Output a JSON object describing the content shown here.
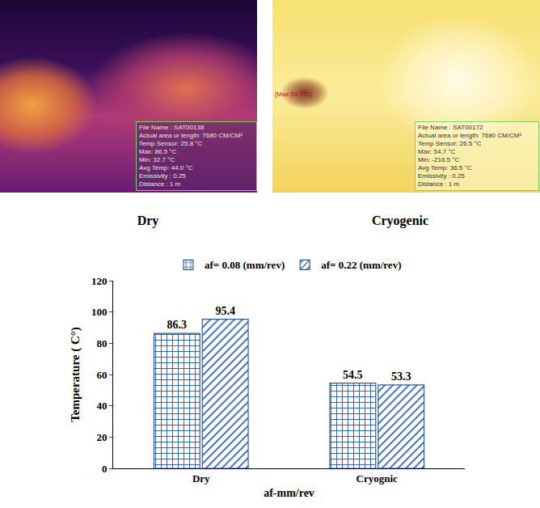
{
  "panels": [
    {
      "label": "Dry",
      "info": [
        "File Name : SAT00138",
        "Actual area or length: 7680 CM/CM²",
        "Temp Sensor: 25.8 °C",
        "Max: 86.5 °C",
        "Min: 32.7 °C",
        "Avg Temp: 44.0 °C",
        "Emissivity : 0.25",
        "Distance : 1 m"
      ]
    },
    {
      "label": "Cryogenic",
      "marker_label": "[Max:54.7°C]",
      "info": [
        "File Name : SAT00172",
        "Actual area or length: 7680 CM/CM²",
        "Temp Sensor: 26.5 °C",
        "Max: 54.7 °C",
        "Min: -216.5 °C",
        "Avg Temp: 36.5 °C",
        "Emissivity : 0.25",
        "Distance : 1 m"
      ]
    }
  ],
  "chart_data": {
    "type": "bar",
    "categories": [
      "Dry",
      "Cryognic"
    ],
    "series": [
      {
        "name": "af= 0.08 (mm/rev)",
        "color": "#2e5d9e",
        "marker": "grid",
        "values": [
          86.3,
          54.5
        ]
      },
      {
        "name": "af= 0.22 (mm/rev)",
        "color": "#2e5d9e",
        "marker": "hatch",
        "values": [
          95.4,
          53.3
        ]
      }
    ],
    "x_label": "af-mm/rev",
    "y_label": "Temperature ( C°)",
    "ylim": [
      0,
      120
    ],
    "yticks": [
      0,
      20,
      40,
      60,
      80,
      100,
      120
    ],
    "grid": false,
    "legend": "top",
    "data_labels": true
  }
}
